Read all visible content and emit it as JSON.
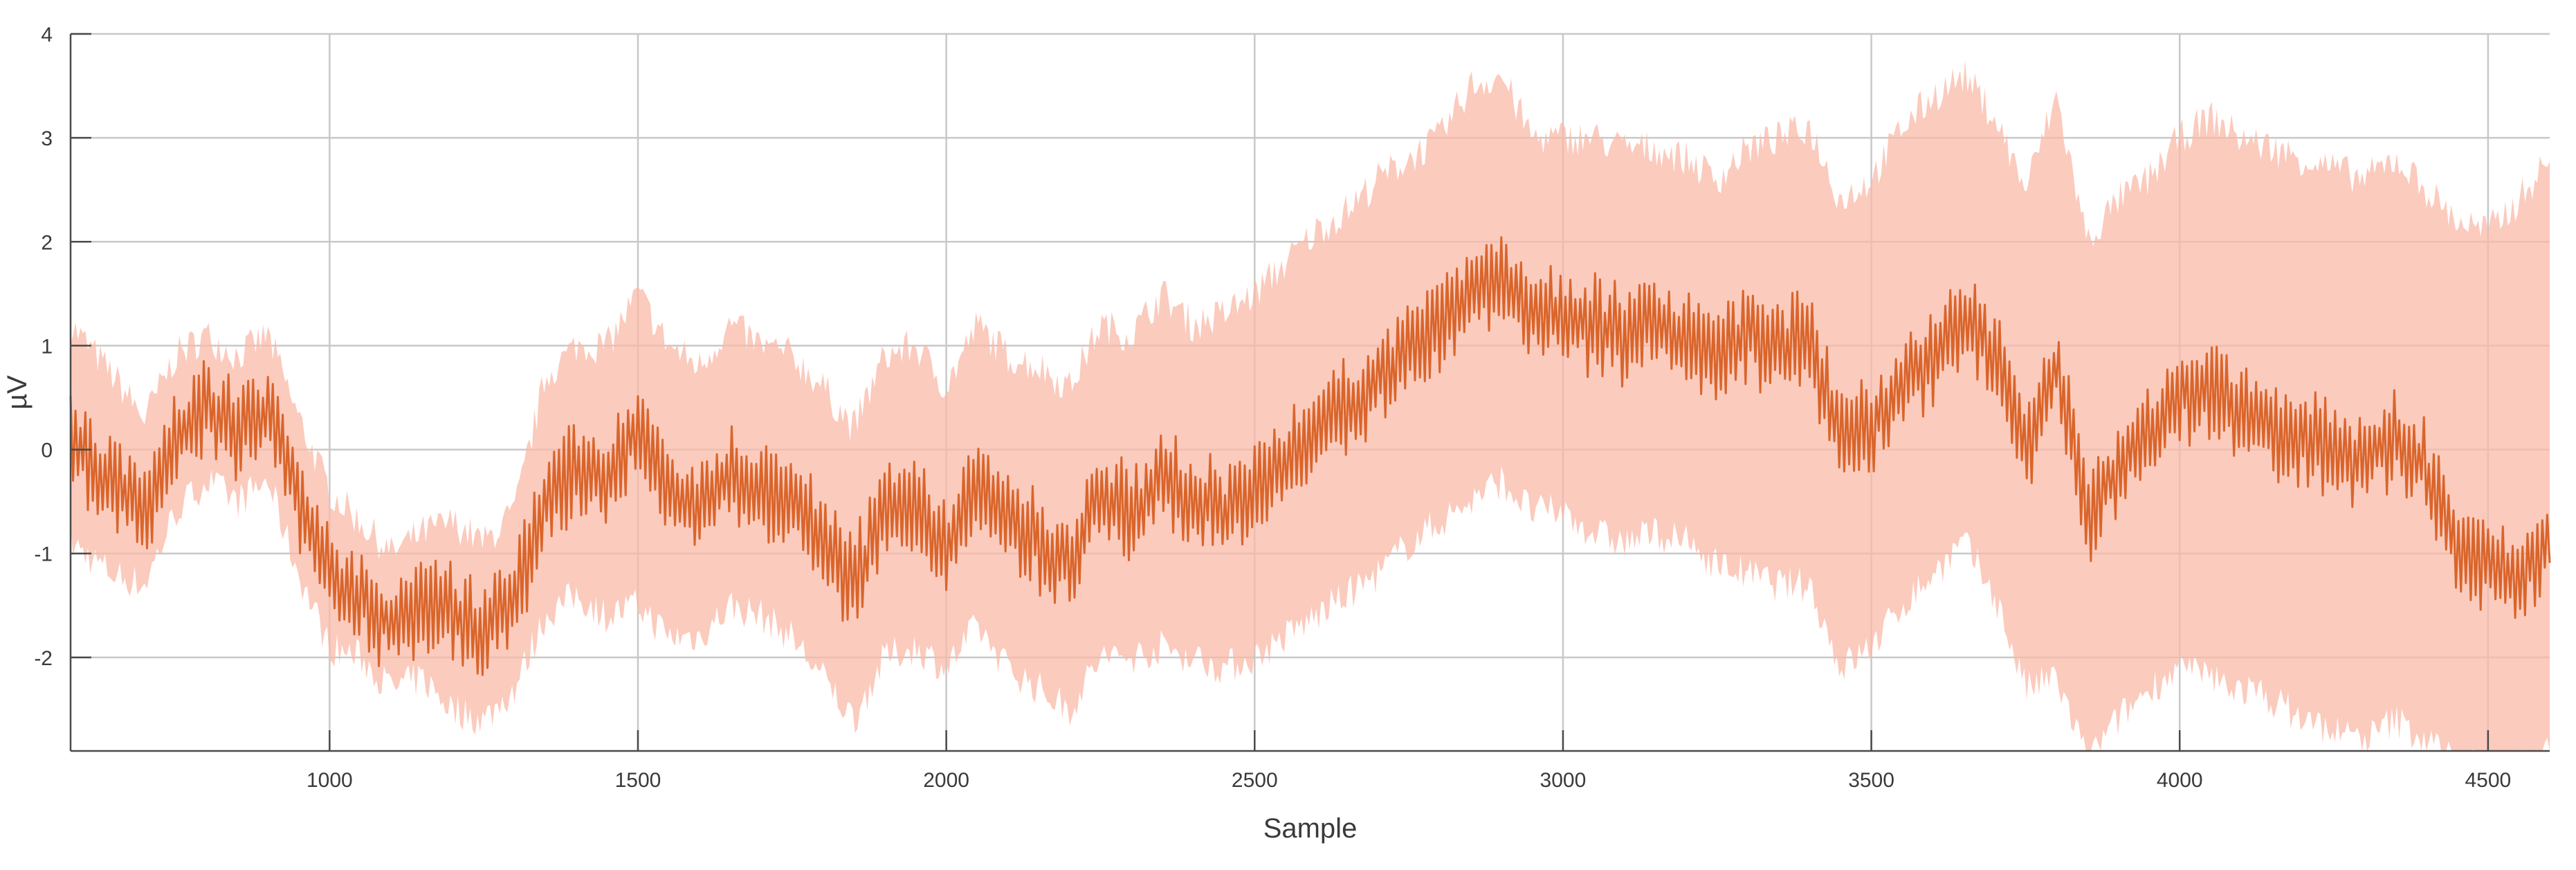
{
  "chart_data": {
    "type": "area",
    "xlabel": "Sample",
    "ylabel": "µV",
    "xlim": [
      580,
      4600
    ],
    "ylim": [
      -2.9,
      4
    ],
    "xticks": [
      1000,
      1500,
      2000,
      2500,
      3000,
      3500,
      4000,
      4500
    ],
    "xtick_labels": [
      "1000",
      "1500",
      "2000",
      "2500",
      "3000",
      "3500",
      "4000",
      "4500"
    ],
    "yticks": [
      -2,
      -1,
      0,
      1,
      2,
      3,
      4
    ],
    "ytick_labels": [
      "-2",
      "-1",
      "0",
      "1",
      "2",
      "3",
      "4"
    ],
    "grid": true,
    "series": [
      {
        "role": "mean",
        "color": "#d9652b",
        "x": [
          580,
          650,
          700,
          750,
          800,
          850,
          900,
          950,
          1000,
          1050,
          1100,
          1150,
          1200,
          1250,
          1300,
          1350,
          1400,
          1450,
          1500,
          1550,
          1600,
          1650,
          1700,
          1750,
          1800,
          1850,
          1900,
          1950,
          2000,
          2050,
          2100,
          2150,
          2200,
          2250,
          2300,
          2350,
          2400,
          2450,
          2500,
          2550,
          2600,
          2650,
          2700,
          2750,
          2800,
          2850,
          2900,
          2950,
          3000,
          3050,
          3100,
          3150,
          3200,
          3250,
          3300,
          3350,
          3400,
          3450,
          3500,
          3550,
          3600,
          3650,
          3700,
          3750,
          3800,
          3850,
          3900,
          3950,
          4000,
          4050,
          4100,
          4150,
          4200,
          4250,
          4300,
          4350,
          4400,
          4450,
          4500,
          4550,
          4600
        ],
        "y": [
          0.1,
          -0.3,
          -0.6,
          0.1,
          0.4,
          0.2,
          0.4,
          -0.5,
          -1.2,
          -1.4,
          -1.7,
          -1.5,
          -1.6,
          -1.8,
          -1.4,
          -0.5,
          -0.2,
          -0.3,
          0.2,
          -0.4,
          -0.6,
          -0.2,
          -0.4,
          -0.5,
          -0.9,
          -1.3,
          -0.6,
          -0.5,
          -0.9,
          -0.3,
          -0.7,
          -0.9,
          -1.1,
          -0.4,
          -0.6,
          -0.3,
          -0.5,
          -0.6,
          -0.4,
          -0.1,
          0.2,
          0.4,
          0.7,
          1.0,
          1.2,
          1.5,
          1.6,
          1.3,
          1.3,
          1.2,
          1.1,
          1.2,
          1.1,
          0.9,
          1.1,
          1.0,
          1.0,
          0.1,
          0.2,
          0.6,
          0.9,
          1.3,
          0.9,
          0.0,
          0.8,
          -0.6,
          -0.2,
          0.2,
          0.5,
          0.6,
          0.4,
          0.2,
          0.1,
          0.0,
          -0.1,
          0.1,
          -0.2,
          -1.0,
          -1.1,
          -1.3,
          -0.8
        ]
      },
      {
        "role": "band",
        "color": "#f9b9a8",
        "x": [
          580,
          650,
          700,
          750,
          800,
          850,
          900,
          950,
          1000,
          1050,
          1100,
          1150,
          1200,
          1250,
          1300,
          1350,
          1400,
          1450,
          1500,
          1550,
          1600,
          1650,
          1700,
          1750,
          1800,
          1850,
          1900,
          1950,
          2000,
          2050,
          2100,
          2150,
          2200,
          2250,
          2300,
          2350,
          2400,
          2450,
          2500,
          2550,
          2600,
          2650,
          2700,
          2750,
          2800,
          2850,
          2900,
          2950,
          3000,
          3050,
          3100,
          3150,
          3200,
          3250,
          3300,
          3350,
          3400,
          3450,
          3500,
          3550,
          3600,
          3650,
          3700,
          3750,
          3800,
          3850,
          3900,
          3950,
          4000,
          4050,
          4100,
          4150,
          4200,
          4250,
          4300,
          4350,
          4400,
          4450,
          4500,
          4550,
          4600
        ],
        "lower": [
          -0.9,
          -1.2,
          -1.3,
          -0.6,
          -0.3,
          -0.5,
          -0.3,
          -1.2,
          -1.9,
          -2.0,
          -2.3,
          -2.2,
          -2.5,
          -2.6,
          -2.3,
          -1.6,
          -1.4,
          -1.6,
          -1.5,
          -1.8,
          -1.8,
          -1.5,
          -1.6,
          -1.8,
          -2.2,
          -2.6,
          -2.0,
          -1.9,
          -2.1,
          -1.7,
          -2.1,
          -2.3,
          -2.5,
          -2.0,
          -2.0,
          -1.9,
          -2.0,
          -2.1,
          -2.0,
          -1.8,
          -1.6,
          -1.4,
          -1.2,
          -0.9,
          -0.7,
          -0.5,
          -0.3,
          -0.6,
          -0.6,
          -0.8,
          -0.9,
          -0.8,
          -0.9,
          -1.1,
          -1.2,
          -1.3,
          -1.3,
          -2.1,
          -1.9,
          -1.5,
          -1.2,
          -0.9,
          -1.4,
          -2.3,
          -2.2,
          -3.0,
          -2.6,
          -2.3,
          -2.1,
          -2.2,
          -2.3,
          -2.4,
          -2.6,
          -2.7,
          -2.8,
          -2.6,
          -2.8,
          -3.0,
          -3.1,
          -3.0,
          -2.9
        ],
        "upper": [
          1.2,
          0.7,
          0.3,
          0.9,
          1.1,
          0.9,
          1.1,
          0.3,
          -0.4,
          -0.7,
          -1.0,
          -0.8,
          -0.7,
          -0.9,
          -0.6,
          0.7,
          1.0,
          1.0,
          1.5,
          1.0,
          0.8,
          1.2,
          1.0,
          0.9,
          0.6,
          0.2,
          0.9,
          1.0,
          0.6,
          1.2,
          0.9,
          0.8,
          0.6,
          1.2,
          1.1,
          1.5,
          1.2,
          1.3,
          1.5,
          1.8,
          2.1,
          2.3,
          2.6,
          2.8,
          3.0,
          3.5,
          3.6,
          3.0,
          3.0,
          3.0,
          2.9,
          2.9,
          2.8,
          2.6,
          2.9,
          3.0,
          3.1,
          2.4,
          2.6,
          3.1,
          3.4,
          3.6,
          3.2,
          2.5,
          3.4,
          2.0,
          2.4,
          2.6,
          3.0,
          3.2,
          3.0,
          2.9,
          2.8,
          2.7,
          2.6,
          2.8,
          2.5,
          2.2,
          2.1,
          2.4,
          2.8
        ]
      }
    ]
  }
}
